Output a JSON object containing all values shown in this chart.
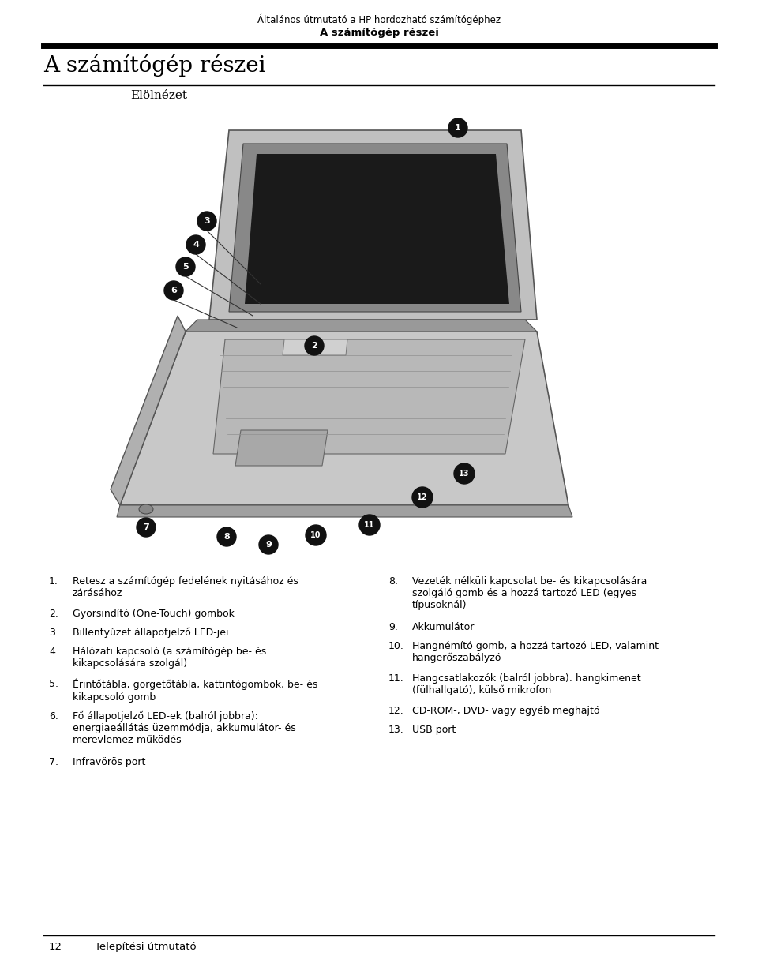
{
  "bg_color": "#ffffff",
  "header_line1": "Általános útmutató a HP hordozható számítógéphez",
  "header_line2": "A számítógép részei",
  "section_title": "A számítógép részei",
  "subsection": "Elölnézet",
  "footer_page": "12",
  "footer_text": "Telepítési útmutató",
  "left_items": [
    {
      "num": "1.",
      "text": "Retesz a számítógép fedelének nyitásához és\nzárásához"
    },
    {
      "num": "2.",
      "text": "Gyorsindító (One-Touch) gombok"
    },
    {
      "num": "3.",
      "text": "Billentyűzet állapotjelző LED-jei"
    },
    {
      "num": "4.",
      "text": "Hálózati kapcsoló (a számítógép be- és\nkikapcsolására szolgál)"
    },
    {
      "num": "5.",
      "text": "Érintőtábla, görgetőtábla, kattintógombok, be- és\nkikapcsoló gomb"
    },
    {
      "num": "6.",
      "text": "Fő állapotjelző LED-ek (balról jobbra):\nenergiaeállátás üzemmódja, akkumulátor- és\nmerevlemez-működés"
    },
    {
      "num": "7.",
      "text": "Infravörös port"
    }
  ],
  "right_items": [
    {
      "num": "8.",
      "text": "Vezeték nélküli kapcsolat be- és kikapcsolására\nszolgáló gomb és a hozzá tartozó LED (egyes\ntípusoknál)"
    },
    {
      "num": "9.",
      "text": "Akkumulátor"
    },
    {
      "num": "10.",
      "text": "Hangnémító gomb, a hozzá tartozó LED, valamint\nhangerőszabályzó"
    },
    {
      "num": "11.",
      "text": "Hangcsatlakozók (balról jobbra): hangkimenet\n(fülhallgató), külső mikrofon"
    },
    {
      "num": "12.",
      "text": "CD-ROM-, DVD- vagy egyéb meghajtó"
    },
    {
      "num": "13.",
      "text": "USB port"
    }
  ],
  "header_fs": 8.5,
  "header_bold_fs": 9.5,
  "section_title_fs": 20,
  "subsection_fs": 11,
  "body_fs": 9,
  "footer_fs": 9.5
}
